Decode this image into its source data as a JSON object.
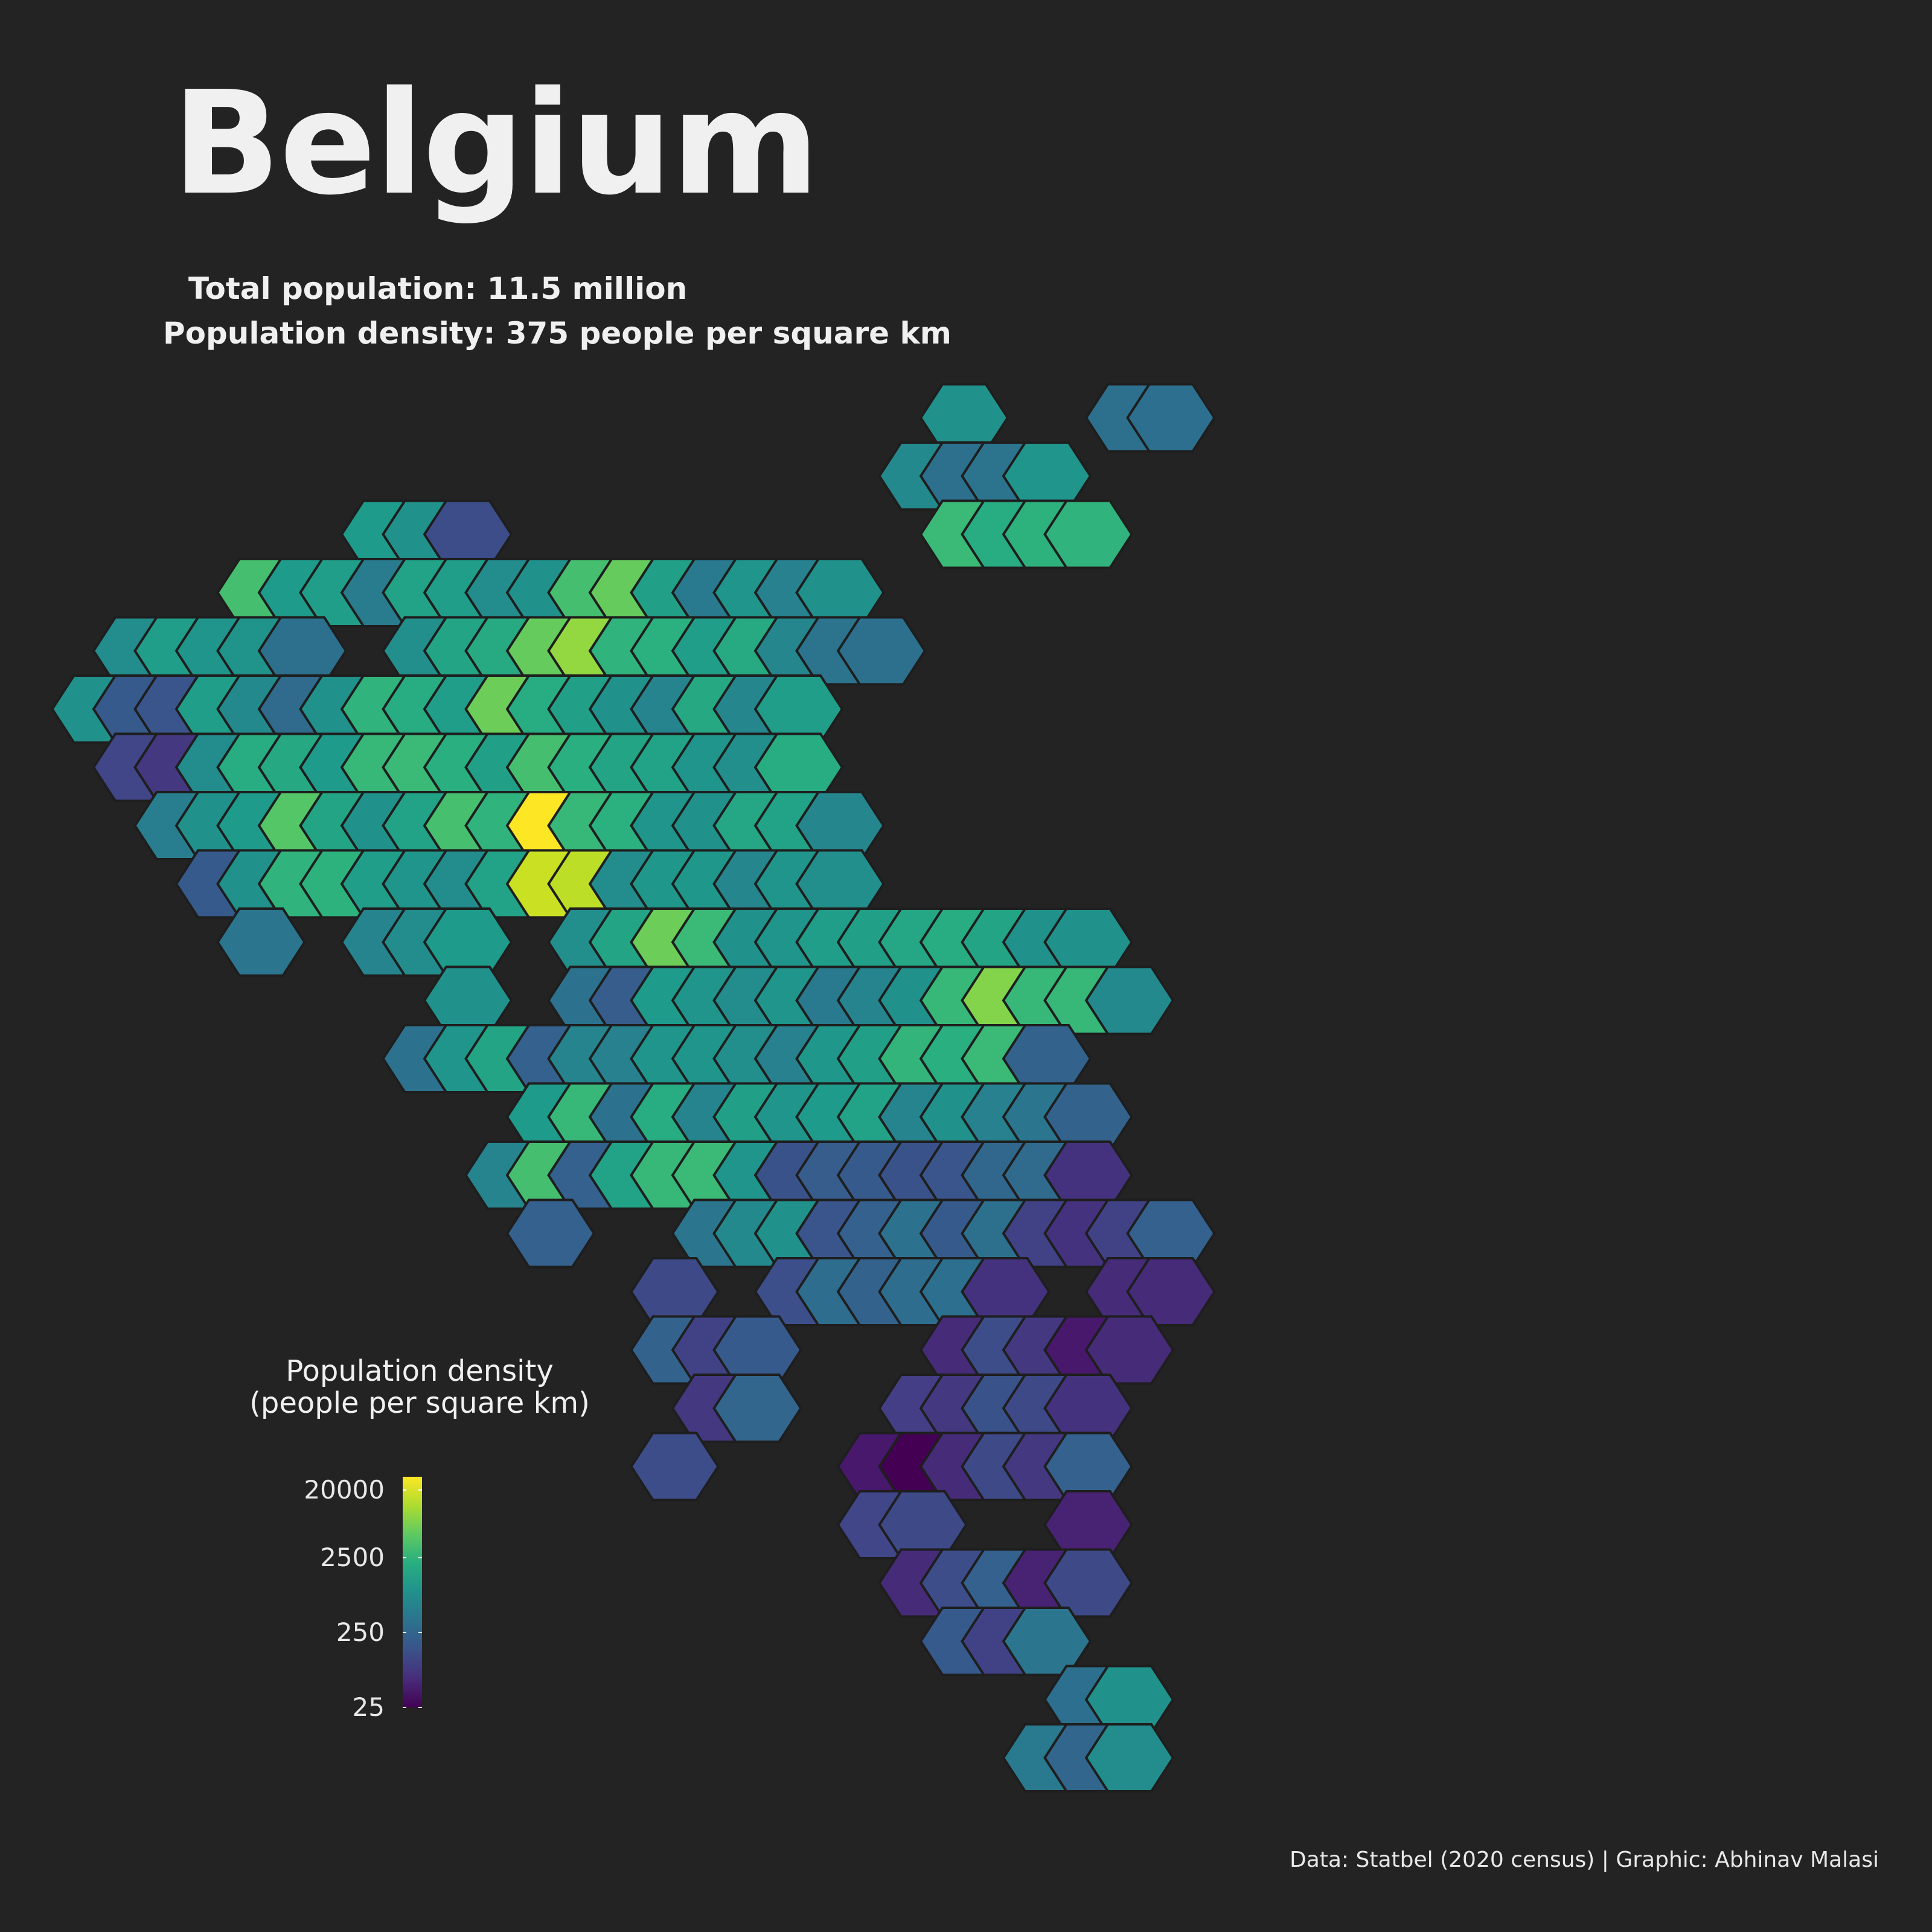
{
  "title": "Belgium",
  "stats": {
    "total_population": "Total population: 11.5 million",
    "density": "Population density: 375 people per square km"
  },
  "legend": {
    "title_line1": "Population density",
    "title_line2": "(people per square km)",
    "ticks": [
      {
        "label": "20000",
        "value": 20000
      },
      {
        "label": "2500",
        "value": 2500
      },
      {
        "label": "250",
        "value": 250
      },
      {
        "label": "25",
        "value": 25
      }
    ],
    "scale": "log",
    "colormap": "viridis"
  },
  "caption": "Data: Statbel (2020 census) | Graphic: Abhinav Malasi",
  "colors": {
    "background": "#232323",
    "text": "#f0f0f0",
    "hex_border": "#1e1e1e"
  },
  "chart_data": {
    "type": "heatmap",
    "rows": [
      {
        "row": 0,
        "start": 22,
        "values": [
          900,
          null,
          null,
          null,
          330,
          320
        ]
      },
      {
        "row": 1,
        "start": 21,
        "values": [
          700,
          330,
          370,
          1000
        ]
      },
      {
        "row": 2,
        "start": 8,
        "values": [
          1200,
          900,
          130,
          null,
          null,
          null,
          null,
          null,
          null,
          null,
          null,
          null,
          null,
          null,
          3000,
          2000,
          2400,
          2500
        ]
      },
      {
        "row": 3,
        "start": 5,
        "values": [
          3500,
          1200,
          1300,
          470,
          1500,
          1300,
          800,
          900,
          3500,
          5500,
          1400,
          450,
          1000,
          550,
          900
        ]
      },
      {
        "row": 4,
        "start": 2,
        "values": [
          800,
          1300,
          1000,
          950,
          330,
          null,
          null,
          850,
          1600,
          1900,
          5500,
          9500,
          2500,
          2300,
          1300,
          1900,
          650,
          370,
          330
        ]
      },
      {
        "row": 5,
        "start": 1,
        "values": [
          900,
          180,
          160,
          1300,
          700,
          280,
          900,
          2500,
          2000,
          1300,
          6000,
          2000,
          1400,
          900,
          600,
          1800,
          650,
          1300
        ]
      },
      {
        "row": 6,
        "start": 2,
        "values": [
          110,
          80,
          800,
          2000,
          1800,
          1200,
          2800,
          3000,
          2200,
          1400,
          3500,
          2200,
          1600,
          1500,
          1000,
          850,
          2000
        ]
      },
      {
        "row": 7,
        "start": 3,
        "values": [
          500,
          900,
          1200,
          4500,
          1600,
          900,
          1500,
          3600,
          2500,
          30000,
          2800,
          2300,
          1000,
          900,
          1700,
          1500,
          650
        ]
      },
      {
        "row": 8,
        "start": 4,
        "values": [
          180,
          900,
          2500,
          2400,
          1300,
          1000,
          800,
          1500,
          17000,
          15000,
          800,
          1100,
          1100,
          650,
          1000,
          850
        ]
      },
      {
        "row": 9,
        "start": 5,
        "values": [
          400,
          null,
          null,
          600,
          800,
          1200,
          null,
          null,
          850,
          1600,
          6000,
          3000,
          900,
          1000,
          1300,
          1400,
          1700,
          2000,
          1600,
          900,
          900
        ]
      },
      {
        "row": 10,
        "start": 10,
        "values": [
          900,
          null,
          null,
          350,
          200,
          1200,
          1000,
          800,
          1000,
          450,
          600,
          900,
          2800,
          8000,
          2800,
          2800,
          700
        ]
      },
      {
        "row": 11,
        "start": 9,
        "values": [
          350,
          1000,
          1600,
          220,
          600,
          550,
          1000,
          1000,
          850,
          550,
          1100,
          1400,
          2600,
          2200,
          3000,
          230
        ]
      },
      {
        "row": 12,
        "start": 12,
        "values": [
          1200,
          2800,
          350,
          2000,
          600,
          1400,
          1000,
          1200,
          1500,
          600,
          900,
          550,
          400,
          230
        ]
      },
      {
        "row": 13,
        "start": 11,
        "values": [
          600,
          3500,
          220,
          1500,
          2800,
          3000,
          1000,
          150,
          200,
          180,
          150,
          160,
          260,
          280,
          70
        ]
      },
      {
        "row": 14,
        "start": 12,
        "values": [
          220,
          null,
          null,
          null,
          400,
          700,
          900,
          160,
          220,
          350,
          180,
          330,
          100,
          70,
          100,
          220
        ]
      },
      {
        "row": 15,
        "start": 15,
        "values": [
          120,
          null,
          null,
          140,
          300,
          230,
          300,
          320,
          70,
          null,
          null,
          60,
          60
        ]
      },
      {
        "row": 16,
        "start": 15,
        "values": [
          230,
          100,
          180,
          null,
          null,
          null,
          null,
          60,
          130,
          80,
          40,
          60
        ]
      },
      {
        "row": 17,
        "start": 16,
        "values": [
          80,
          250,
          null,
          null,
          null,
          90,
          80,
          150,
          120,
          70
        ]
      },
      {
        "row": 18,
        "start": 15,
        "values": [
          130,
          null,
          null,
          null,
          null,
          40,
          25,
          60,
          120,
          80,
          220
        ]
      },
      {
        "row": 19,
        "start": 20,
        "values": [
          110,
          120,
          null,
          null,
          null,
          50
        ]
      },
      {
        "row": 20,
        "start": 21,
        "values": [
          60,
          130,
          220,
          50,
          120
        ]
      },
      {
        "row": 21,
        "start": 22,
        "values": [
          180,
          100,
          400
        ]
      },
      {
        "row": 22,
        "start": 25,
        "values": [
          320,
          900
        ]
      },
      {
        "row": 23,
        "start": 24,
        "values": [
          450,
          250,
          800
        ]
      }
    ]
  }
}
